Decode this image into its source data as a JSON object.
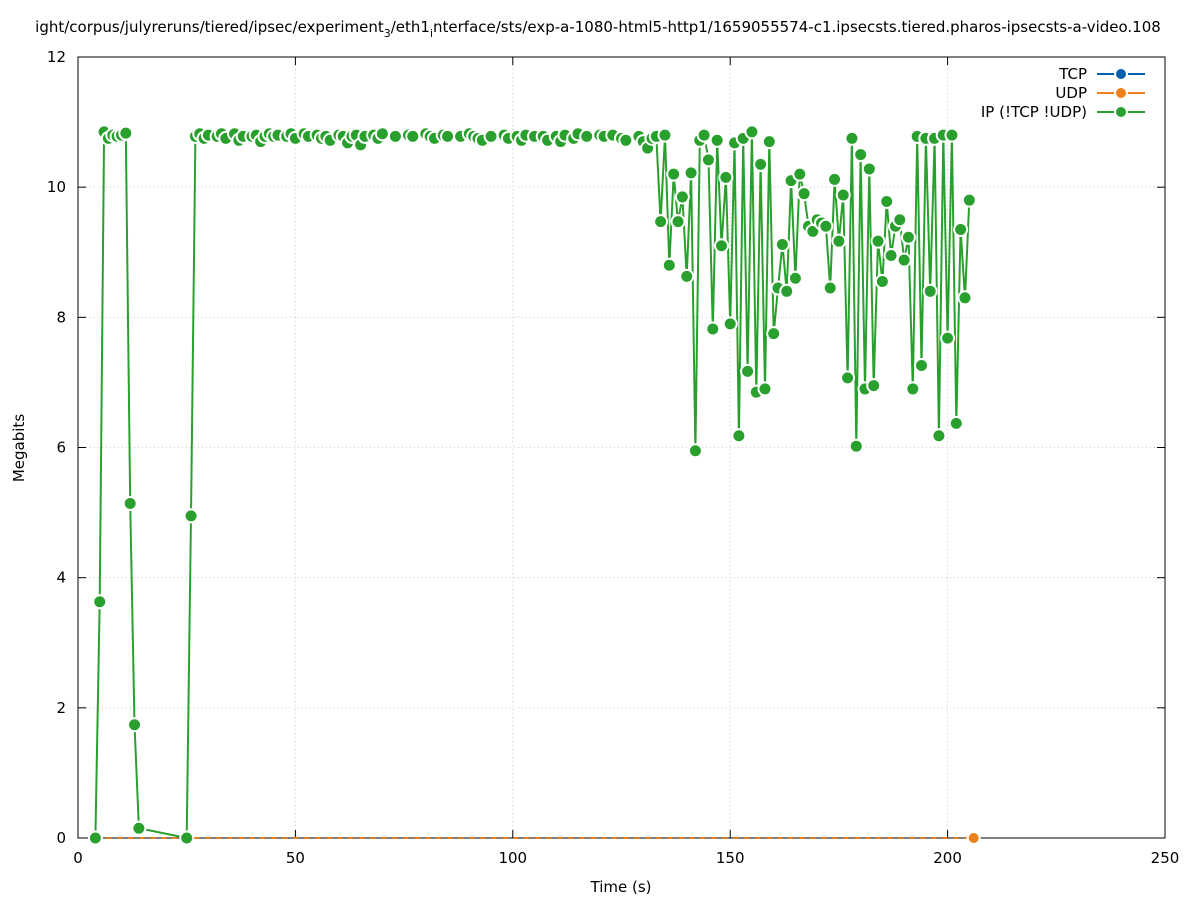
{
  "chart_data": {
    "type": "line",
    "title": "ight/corpus/julyreruns/tiered/ipsec/experiment_3/eth1_interface/sts/exp-a-1080-html5-http1/1659055574-c1.ipsecsts.tiered.pharos-ipsecsts-a-video.108",
    "title_parts": {
      "pre": "ight/corpus/julyreruns/tiered/ipsec/experiment",
      "sub1": "3",
      "mid": "/eth1",
      "sub2": "i",
      "post": "nterface/sts/exp-a-1080-html5-http1/1659055574-c1.ipsecsts.tiered.pharos-ipsecsts-a-video.108"
    },
    "xlabel": "Time (s)",
    "ylabel": "Megabits",
    "xlim": [
      0,
      250
    ],
    "ylim": [
      0,
      12
    ],
    "x_ticks": [
      "0",
      "50",
      "100",
      "150",
      "200",
      "250"
    ],
    "y_ticks": [
      "0",
      "2",
      "4",
      "6",
      "8",
      "10",
      "12"
    ],
    "grid": true,
    "legend_position": "top-right",
    "series": [
      {
        "name": "TCP",
        "color": "#0060ad",
        "x": [],
        "y": []
      },
      {
        "name": "UDP",
        "color": "#ef7f1a",
        "x": [
          4,
          6,
          8,
          10,
          12,
          14,
          16,
          18,
          20,
          22,
          24,
          26,
          28,
          30,
          32,
          34,
          36,
          38,
          40,
          42,
          44,
          46,
          48,
          50,
          52,
          54,
          56,
          58,
          60,
          62,
          64,
          66,
          68,
          70,
          72,
          74,
          76,
          78,
          80,
          82,
          84,
          86,
          88,
          90,
          92,
          94,
          96,
          98,
          100,
          102,
          104,
          106,
          108,
          110,
          112,
          114,
          116,
          118,
          120,
          122,
          124,
          126,
          128,
          130,
          132,
          134,
          136,
          138,
          140,
          142,
          144,
          146,
          148,
          150,
          152,
          154,
          156,
          158,
          160,
          162,
          164,
          166,
          168,
          170,
          172,
          174,
          176,
          178,
          180,
          182,
          184,
          186,
          188,
          190,
          192,
          194,
          196,
          198,
          200,
          202,
          204,
          206
        ],
        "y": [
          0,
          0,
          0,
          0,
          0,
          0,
          0,
          0,
          0,
          0,
          0,
          0,
          0,
          0,
          0,
          0,
          0,
          0,
          0,
          0,
          0,
          0,
          0,
          0,
          0,
          0,
          0,
          0,
          0,
          0,
          0,
          0,
          0,
          0,
          0,
          0,
          0,
          0,
          0,
          0,
          0,
          0,
          0,
          0,
          0,
          0,
          0,
          0,
          0,
          0,
          0,
          0,
          0,
          0,
          0,
          0,
          0,
          0,
          0,
          0,
          0,
          0,
          0,
          0,
          0,
          0,
          0,
          0,
          0,
          0,
          0,
          0,
          0,
          0,
          0,
          0,
          0,
          0,
          0,
          0,
          0,
          0,
          0,
          0,
          0,
          0,
          0,
          0,
          0,
          0,
          0,
          0,
          0,
          0,
          0,
          0,
          0,
          0,
          0,
          0,
          0,
          0
        ]
      },
      {
        "name": "IP (!TCP  !UDP)",
        "color": "#29a02d",
        "x": [
          4,
          5,
          6,
          7,
          8,
          9,
          10,
          11,
          12,
          13,
          14,
          25,
          26,
          27,
          28,
          29,
          30,
          32,
          33,
          34,
          36,
          37,
          38,
          40,
          41,
          42,
          43,
          44,
          45,
          46,
          48,
          49,
          50,
          52,
          53,
          55,
          56,
          57,
          58,
          60,
          61,
          62,
          63,
          64,
          65,
          66,
          68,
          69,
          70,
          73,
          76,
          77,
          80,
          81,
          82,
          84,
          85,
          88,
          90,
          91,
          92,
          93,
          95,
          98,
          99,
          101,
          102,
          103,
          105,
          107,
          108,
          110,
          111,
          112,
          114,
          115,
          117,
          120,
          121,
          123,
          125,
          126,
          129,
          130,
          131,
          132,
          133,
          134,
          135,
          136,
          137,
          138,
          139,
          140,
          141,
          142,
          143,
          144,
          145,
          146,
          147,
          148,
          149,
          150,
          151,
          152,
          153,
          154,
          155,
          156,
          157,
          158,
          159,
          160,
          161,
          162,
          163,
          164,
          165,
          166,
          167,
          168,
          169,
          170,
          171,
          172,
          173,
          174,
          175,
          176,
          177,
          178,
          179,
          180,
          181,
          182,
          183,
          184,
          185,
          186,
          187,
          188,
          189,
          190,
          191,
          192,
          193,
          194,
          195,
          196,
          197,
          198,
          199,
          200,
          201,
          202,
          203,
          204,
          205
        ],
        "y": [
          0,
          3.63,
          10.85,
          10.75,
          10.8,
          10.78,
          10.8,
          10.83,
          5.14,
          1.74,
          0.15,
          0,
          4.95,
          10.78,
          10.82,
          10.75,
          10.8,
          10.78,
          10.82,
          10.75,
          10.82,
          10.72,
          10.78,
          10.78,
          10.8,
          10.7,
          10.78,
          10.82,
          10.78,
          10.8,
          10.78,
          10.82,
          10.75,
          10.82,
          10.78,
          10.8,
          10.75,
          10.78,
          10.72,
          10.8,
          10.78,
          10.68,
          10.78,
          10.8,
          10.65,
          10.78,
          10.8,
          10.75,
          10.82,
          10.78,
          10.8,
          10.78,
          10.82,
          10.78,
          10.75,
          10.8,
          10.78,
          10.78,
          10.82,
          10.78,
          10.75,
          10.72,
          10.78,
          10.8,
          10.75,
          10.78,
          10.72,
          10.8,
          10.78,
          10.78,
          10.72,
          10.78,
          10.7,
          10.8,
          10.75,
          10.82,
          10.78,
          10.8,
          10.78,
          10.8,
          10.75,
          10.72,
          10.78,
          10.7,
          10.6,
          10.75,
          10.78,
          9.47,
          10.8,
          8.8,
          10.2,
          9.47,
          9.85,
          8.63,
          10.22,
          5.95,
          10.72,
          10.8,
          10.42,
          7.82,
          10.72,
          9.1,
          10.15,
          7.9,
          10.68,
          6.18,
          10.75,
          7.17,
          10.85,
          6.85,
          10.35,
          6.9,
          10.7,
          7.75,
          8.45,
          9.12,
          8.4,
          10.1,
          8.6,
          10.2,
          9.9,
          9.4,
          9.32,
          9.5,
          9.45,
          9.4,
          8.45,
          10.12,
          9.17,
          9.88,
          7.07,
          10.75,
          6.02,
          10.5,
          6.9,
          10.28,
          6.95,
          9.17,
          8.55,
          9.78,
          8.95,
          9.4,
          9.5,
          8.88,
          9.23,
          6.9,
          10.78,
          7.26,
          10.75,
          8.4,
          10.75,
          6.18,
          10.8,
          7.68,
          10.8,
          6.37,
          9.35,
          8.3,
          9.8
        ]
      }
    ]
  }
}
